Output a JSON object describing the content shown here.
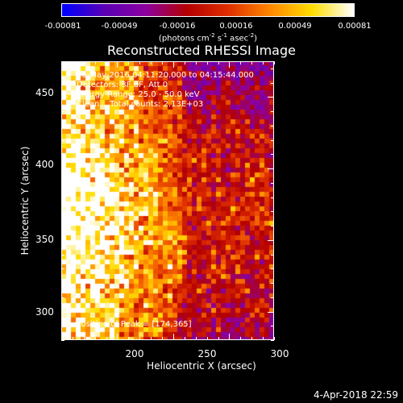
{
  "colorbar": {
    "colors": [
      "#0000ff",
      "#5a00b4",
      "#8c00a0",
      "#b40000",
      "#e03000",
      "#ff8800",
      "#ffdd00",
      "#ffffff"
    ],
    "ticks": [
      "-0.00081",
      "-0.00049",
      "-0.00016",
      "0.00016",
      "0.00049",
      "0.00081"
    ],
    "tick_values": [
      -0.00081,
      -0.00049,
      -0.00016,
      0.00016,
      0.00049,
      0.00081
    ],
    "unit_text": {
      "a": "(photons cm",
      "b": "-2",
      "c": " s",
      "d": "-1",
      "e": " asec",
      "f": "-2",
      "g": ")"
    }
  },
  "title": "Reconstructed RHESSI Image",
  "annotations": {
    "time_range": "16-May-2016 04:11:20.000 to 04:15:44.000",
    "detectors": "Detectors: 3F 8F, Att 0",
    "energy": "Energy Range: 25.0 - 50.0 keV",
    "clean": "Clean    Total counts: 2.13E+03",
    "peak": "Position of Peak = [174,365]"
  },
  "axes": {
    "xlabel": "Heliocentric X (arcsec)",
    "ylabel": "Heliocentric Y (arcsec)",
    "xlim": [
      150,
      340
    ],
    "ylim": [
      280,
      475
    ],
    "xticks": [
      200,
      250,
      300
    ],
    "yticks": [
      300,
      350,
      400,
      450
    ]
  },
  "timestamp": "4-Apr-2018 22:59"
}
